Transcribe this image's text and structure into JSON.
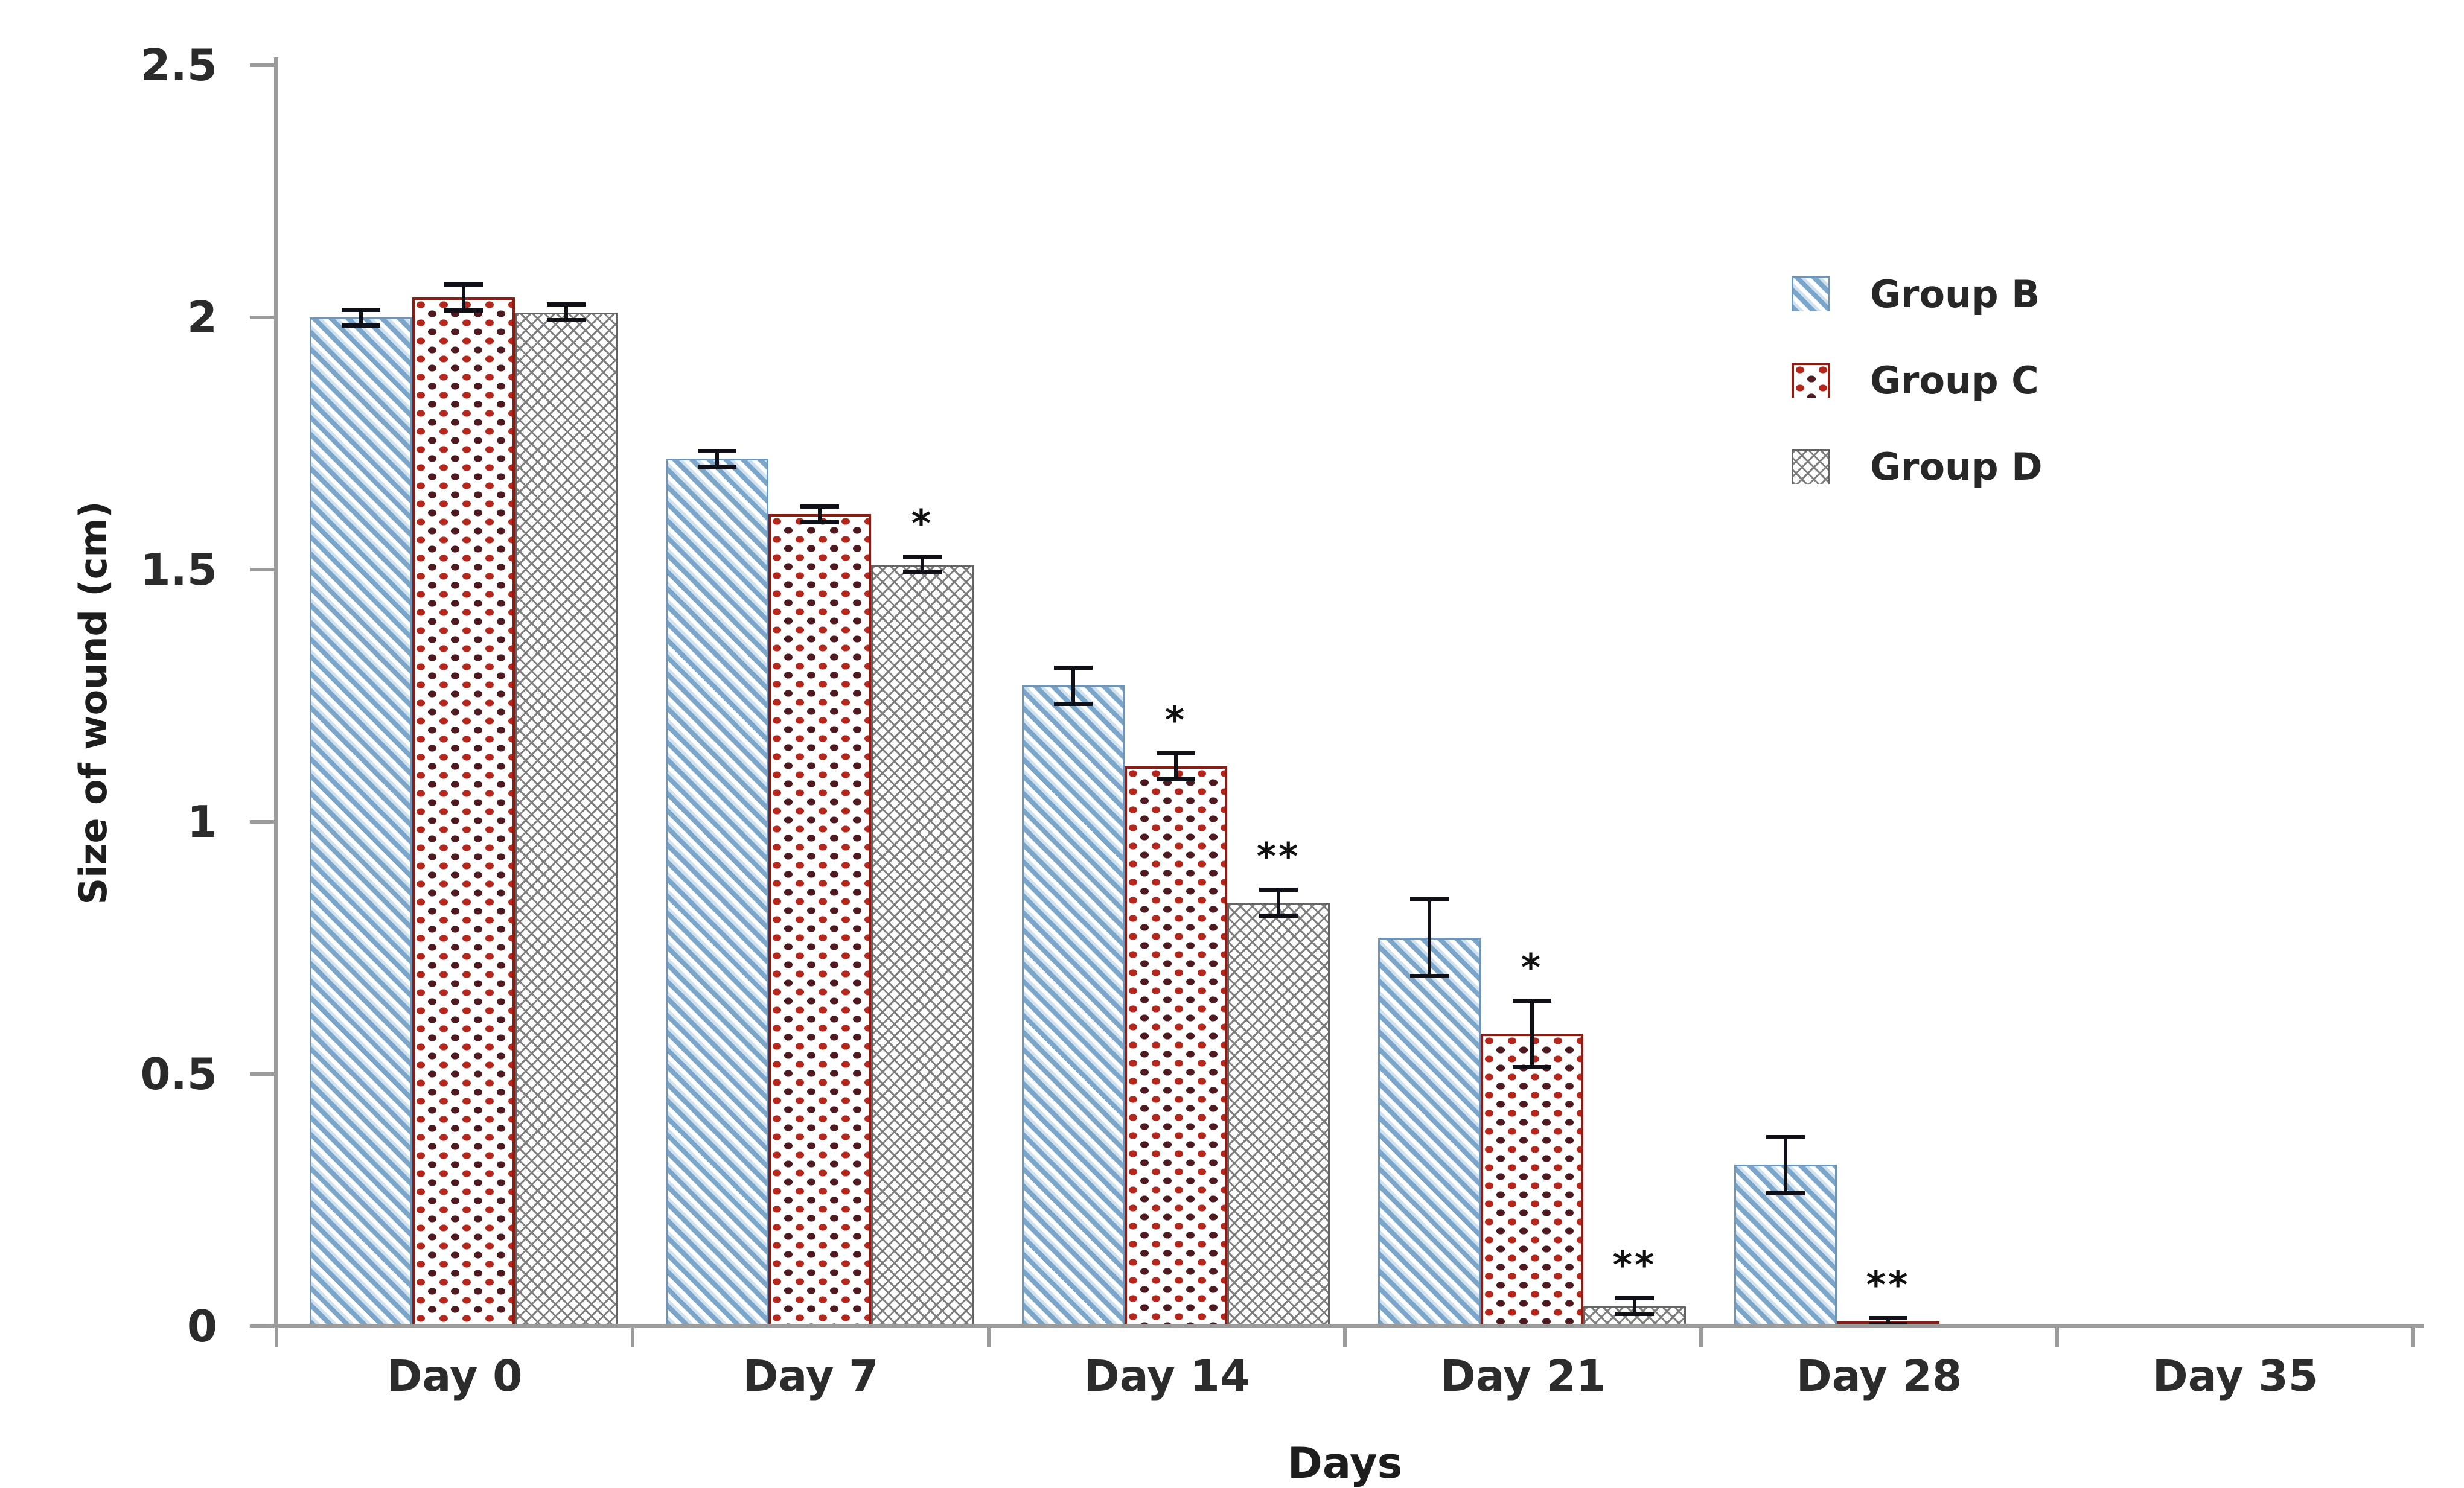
{
  "figure": {
    "background": "#ffffff",
    "description_note": "Grouped bar chart of wound size over time for three groups with error bars and significance asterisks"
  },
  "chart_data": {
    "type": "bar",
    "title": "",
    "xlabel": "Days",
    "ylabel": "Size of wound (cm)",
    "categories": [
      "Day 0",
      "Day 7",
      "Day 14",
      "Day 21",
      "Day 28",
      "Day 35"
    ],
    "ylim": [
      0,
      2.5
    ],
    "yticks": [
      2.5,
      2,
      1.5,
      1,
      0.5,
      0
    ],
    "ytick_labels": [
      "2.5",
      "2",
      "1.5",
      "1",
      "0.5",
      "0"
    ],
    "grid": false,
    "legend_position": "upper right",
    "series": [
      {
        "name": "Group B",
        "pattern": "blue-diagonal-hatch",
        "values": [
          2.0,
          1.72,
          1.27,
          0.77,
          0.32,
          0
        ],
        "errors": [
          0.02,
          0.02,
          0.04,
          0.08,
          0.06,
          0
        ],
        "annotations": [
          "",
          "",
          "",
          "",
          "",
          ""
        ]
      },
      {
        "name": "Group C",
        "pattern": "red-speckle-dots",
        "values": [
          2.04,
          1.61,
          1.11,
          0.58,
          0.01,
          0
        ],
        "errors": [
          0.03,
          0.02,
          0.03,
          0.07,
          0.01,
          0
        ],
        "annotations": [
          "",
          "",
          "*",
          "*",
          "**",
          ""
        ]
      },
      {
        "name": "Group D",
        "pattern": "gray-weave-hatch",
        "values": [
          2.01,
          1.51,
          0.84,
          0.04,
          0,
          0
        ],
        "errors": [
          0.02,
          0.02,
          0.03,
          0.02,
          0,
          0
        ],
        "annotations": [
          "",
          "*",
          "**",
          "**",
          "",
          ""
        ]
      }
    ],
    "colors": {
      "series_b_fill": "#7ba6ca",
      "series_b_border": "#6e95b8",
      "series_c_dot_bright": "#b5271d",
      "series_c_dot_dark": "#4e1a1f",
      "series_c_border": "#8e1c12",
      "series_d_line": "#7e7e7e",
      "series_d_border": "#636363",
      "axis": "#9b9b9b",
      "error_bar": "#101018",
      "text": "#222222"
    }
  }
}
